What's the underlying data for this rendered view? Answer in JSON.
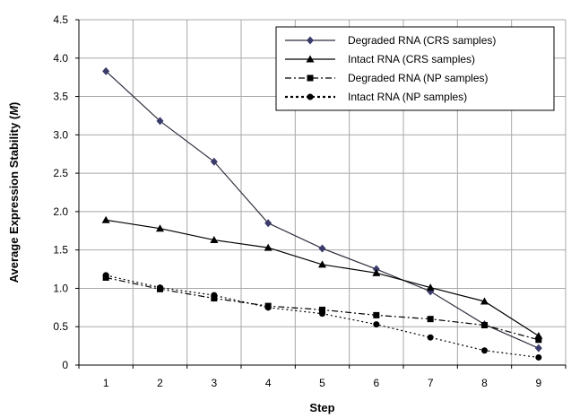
{
  "chart_data": {
    "type": "line",
    "title": "",
    "xlabel": "Step",
    "ylabel_parts": {
      "before": "Average Expression Stability (",
      "italic": "M",
      "after": ")"
    },
    "x": [
      1,
      2,
      3,
      4,
      5,
      6,
      7,
      8,
      9
    ],
    "xlim": [
      0.5,
      9.5
    ],
    "ylim": [
      0,
      4.5
    ],
    "yticks": [
      "0",
      "0.5",
      "1.0",
      "1.5",
      "2.0",
      "2.5",
      "3.0",
      "3.5",
      "4.0",
      "4.5"
    ],
    "xticks": [
      "1",
      "2",
      "3",
      "4",
      "5",
      "6",
      "7",
      "8",
      "9"
    ],
    "grid": true,
    "legend_position": "top-right",
    "series": [
      {
        "name": "Degraded RNA (CRS samples)",
        "marker": "diamond",
        "line": "solid",
        "color": "#2f2f3f",
        "marker_color": "#3b3b6b",
        "values": [
          3.83,
          3.18,
          2.65,
          1.85,
          1.52,
          1.25,
          0.96,
          0.53,
          0.22
        ]
      },
      {
        "name": "Intact RNA (CRS samples)",
        "marker": "triangle",
        "line": "solid",
        "color": "#000000",
        "marker_color": "#000000",
        "values": [
          1.89,
          1.78,
          1.63,
          1.53,
          1.31,
          1.2,
          1.01,
          0.83,
          0.38
        ]
      },
      {
        "name": "Degraded RNA (NP samples)",
        "marker": "square",
        "line": "dashdot",
        "color": "#000000",
        "marker_color": "#000000",
        "values": [
          1.14,
          0.99,
          0.87,
          0.77,
          0.72,
          0.65,
          0.6,
          0.52,
          0.33
        ]
      },
      {
        "name": "Intact RNA (NP samples)",
        "marker": "circle",
        "line": "dotted",
        "color": "#000000",
        "marker_color": "#000000",
        "values": [
          1.17,
          1.01,
          0.91,
          0.75,
          0.67,
          0.53,
          0.36,
          0.19,
          0.1
        ]
      }
    ]
  }
}
